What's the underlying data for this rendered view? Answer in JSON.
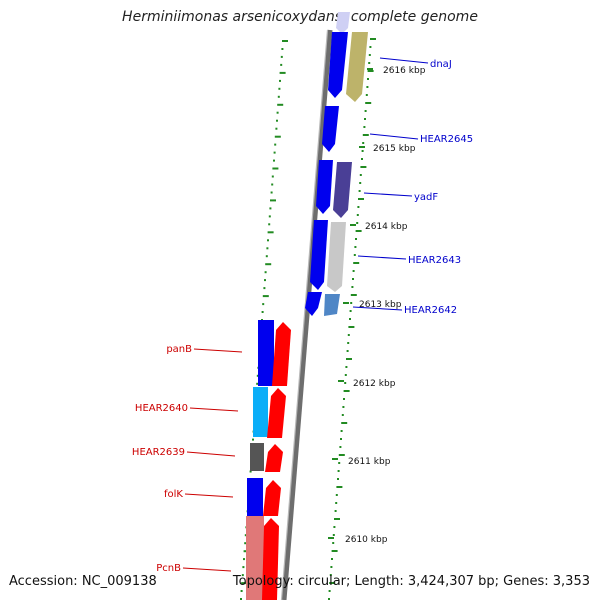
{
  "title": "Herminiimonas arsenicoxydans, complete genome",
  "footer": {
    "accession": "Accession: NC_009138",
    "topology": "Topology: circular; Length: 3,424,307 bp; Genes: 3,353"
  },
  "scale_ticks": [
    {
      "label": "2616 kbp",
      "value": 2616
    },
    {
      "label": "2615 kbp",
      "value": 2615
    },
    {
      "label": "2614 kbp",
      "value": 2614
    },
    {
      "label": "2613 kbp",
      "value": 2613
    },
    {
      "label": "2612 kbp",
      "value": 2612
    },
    {
      "label": "2611 kbp",
      "value": 2611
    },
    {
      "label": "2610 kbp",
      "value": 2610
    }
  ],
  "right_genes": [
    {
      "label": "dnaJ",
      "color": "#0000cc"
    },
    {
      "label": "HEAR2645",
      "color": "#0000cc"
    },
    {
      "label": "yadF",
      "color": "#0000cc"
    },
    {
      "label": "HEAR2643",
      "color": "#0000cc"
    },
    {
      "label": "HEAR2642",
      "color": "#0000cc"
    }
  ],
  "left_genes": [
    {
      "label": "panB",
      "color": "#cc0000"
    },
    {
      "label": "HEAR2640",
      "color": "#cc0000"
    },
    {
      "label": "HEAR2639",
      "color": "#cc0000"
    },
    {
      "label": "folK",
      "color": "#cc0000"
    },
    {
      "label": "PcnB",
      "color": "#cc0000"
    }
  ],
  "colors": {
    "backbone": "#808080",
    "tick": "#228b22",
    "cds_strand": "#0000ee",
    "gene_strand": "#ee0000"
  }
}
